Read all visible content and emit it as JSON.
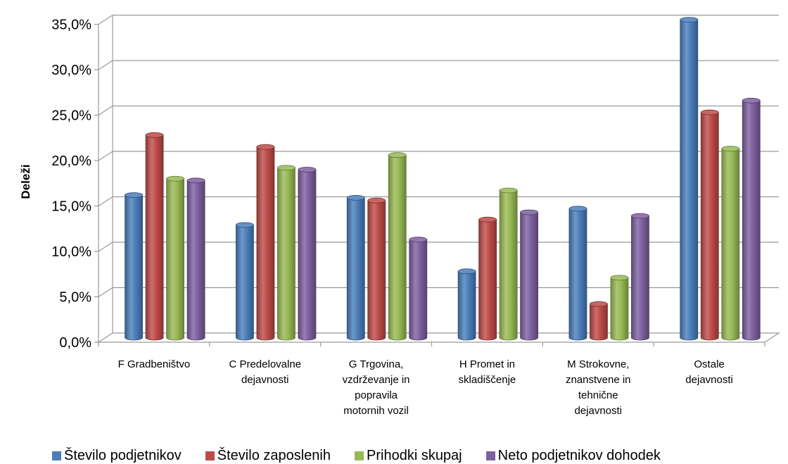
{
  "chart_data": {
    "type": "bar",
    "ylabel": "Deleži",
    "xlabel": "",
    "ylim": [
      0,
      35
    ],
    "y_ticks": [
      "0,0%",
      "5,0%",
      "10,0%",
      "15,0%",
      "20,0%",
      "25,0%",
      "30,0%",
      "35,0%"
    ],
    "grid": true,
    "legend_position": "bottom",
    "categories": [
      [
        "F Gradbeništvo"
      ],
      [
        "C Predelovalne",
        "dejavnosti"
      ],
      [
        "G Trgovina,",
        "vzdrževanje in",
        "popravila",
        "motornih vozil"
      ],
      [
        "H Promet in",
        "skladiščenje"
      ],
      [
        "M Strokovne,",
        "znanstvene in",
        "tehnične",
        "dejavnosti"
      ],
      [
        "Ostale",
        "dejavnosti"
      ]
    ],
    "series": [
      {
        "name": "Število podjetnikov",
        "color": "#4a7ebb",
        "values": [
          15.7,
          12.4,
          15.4,
          7.3,
          14.2,
          35.0
        ]
      },
      {
        "name": "Število zaposlenih",
        "color": "#be4b48",
        "values": [
          22.3,
          21.0,
          15.1,
          13.0,
          3.7,
          24.8
        ]
      },
      {
        "name": "Prihodki skupaj",
        "color": "#98b954",
        "values": [
          17.5,
          18.7,
          20.1,
          16.2,
          6.6,
          20.8
        ]
      },
      {
        "name": "Neto podjetnikov dohodek",
        "color": "#7d60a0",
        "values": [
          17.3,
          18.5,
          10.8,
          13.8,
          13.4,
          26.1
        ]
      }
    ]
  }
}
